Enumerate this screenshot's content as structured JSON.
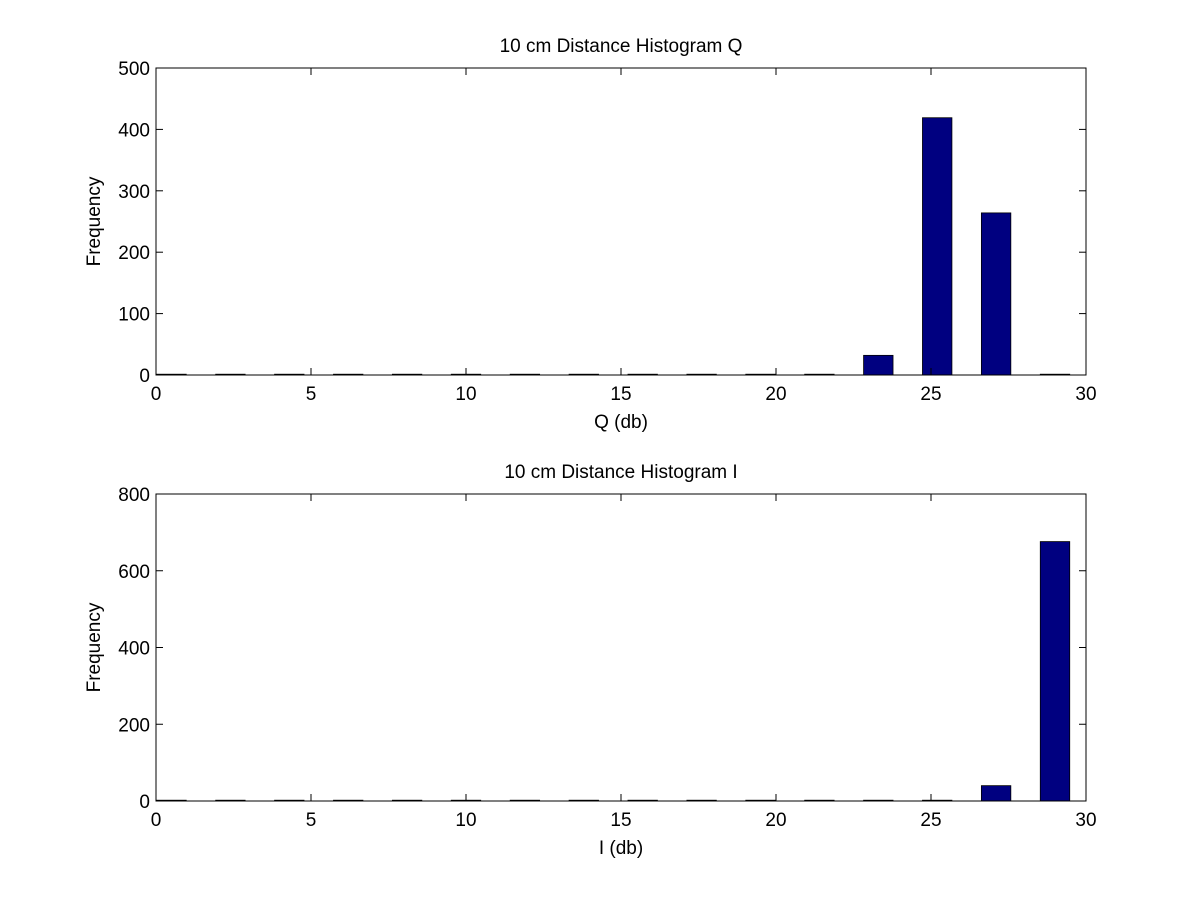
{
  "chart_data": [
    {
      "type": "bar",
      "title": "10 cm Distance Histogram Q",
      "xlabel": "Q (db)",
      "ylabel": "Frequency",
      "xlim": [
        0,
        30
      ],
      "ylim": [
        0,
        500
      ],
      "xticks": [
        0,
        5,
        10,
        15,
        20,
        25,
        30
      ],
      "yticks": [
        0,
        100,
        200,
        300,
        400,
        500
      ],
      "bar_width": 0.95,
      "grid": false,
      "x": [
        0.5,
        2.4,
        4.3,
        6.2,
        8.1,
        10.0,
        11.9,
        13.8,
        15.7,
        17.6,
        19.5,
        21.4,
        23.3,
        25.2,
        27.1,
        29.0
      ],
      "values": [
        1,
        1,
        1,
        1,
        0,
        0,
        0,
        0,
        0,
        0,
        0,
        1,
        32,
        419,
        264,
        0
      ],
      "bar_color": "#000080"
    },
    {
      "type": "bar",
      "title": "10 cm Distance Histogram I",
      "xlabel": "I (db)",
      "ylabel": "Frequency",
      "xlim": [
        0,
        30
      ],
      "ylim": [
        0,
        800
      ],
      "xticks": [
        0,
        5,
        10,
        15,
        20,
        25,
        30
      ],
      "yticks": [
        0,
        200,
        400,
        600,
        800
      ],
      "bar_width": 0.95,
      "grid": false,
      "x": [
        0.5,
        2.4,
        4.3,
        6.2,
        8.1,
        10.0,
        11.9,
        13.8,
        15.7,
        17.6,
        19.5,
        21.4,
        23.3,
        25.2,
        27.1,
        29.0
      ],
      "values": [
        0,
        1,
        0,
        0,
        1,
        1,
        0,
        1,
        0,
        0,
        0,
        0,
        0,
        1,
        40,
        676
      ],
      "bar_color": "#000080"
    }
  ]
}
